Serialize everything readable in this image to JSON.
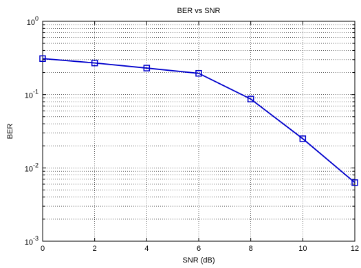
{
  "chart_data": {
    "type": "line",
    "title": "BER vs SNR",
    "xlabel": "SNR (dB)",
    "ylabel": "BER",
    "xlim": [
      0,
      12
    ],
    "ylim": [
      0.001,
      1
    ],
    "yscale": "log",
    "grid": true,
    "x_ticks": [
      "0",
      "2",
      "4",
      "6",
      "8",
      "10",
      "12"
    ],
    "y_ticks": [
      {
        "base": "10",
        "exp": "0"
      },
      {
        "base": "10",
        "exp": "-1"
      },
      {
        "base": "10",
        "exp": "-2"
      },
      {
        "base": "10",
        "exp": "-3"
      }
    ],
    "series": [
      {
        "x": [
          0,
          2,
          4,
          6,
          8,
          10,
          12
        ],
        "y": [
          0.31,
          0.27,
          0.23,
          0.195,
          0.087,
          0.025,
          0.0063
        ],
        "color": "#0000cc",
        "marker": "square"
      }
    ]
  }
}
